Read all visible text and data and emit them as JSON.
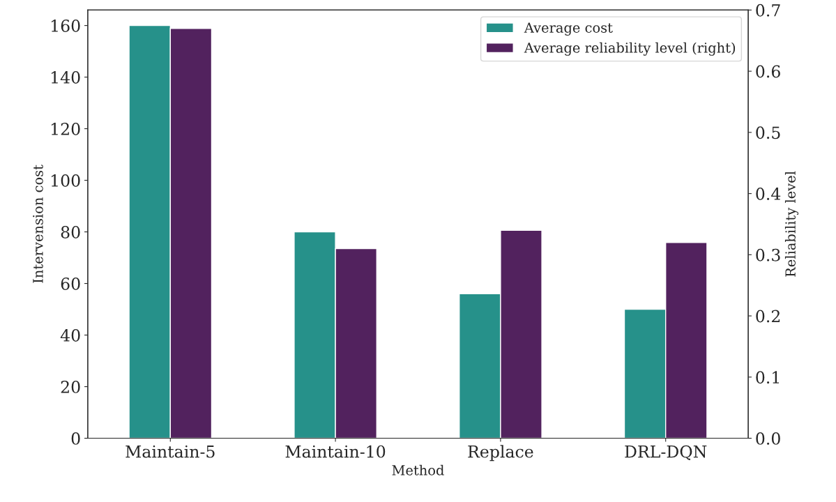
{
  "chart_data": {
    "type": "bar",
    "xlabel": "Method",
    "ylabel": "Intervension cost",
    "y2label": "Reliability level",
    "categories": [
      "Maintain-5",
      "Maintain-10",
      "Replace",
      "DRL-DQN"
    ],
    "series": [
      {
        "name": "Average cost",
        "color": "#26918a",
        "values": [
          160,
          80,
          56,
          50
        ]
      },
      {
        "name": "Average reliability level (right)",
        "color": "#52225e",
        "axis": "y2",
        "values": [
          0.67,
          0.31,
          0.34,
          0.32
        ]
      }
    ],
    "ylim": [
      0,
      166
    ],
    "yticks": [
      0,
      20,
      40,
      60,
      80,
      100,
      120,
      140,
      160
    ],
    "y2lim": [
      0,
      0.7
    ],
    "y2ticks": [
      {
        "value": 0,
        "label": "0.0"
      },
      0.1,
      0.2,
      0.3,
      0.4,
      0.5,
      0.6,
      0.7
    ],
    "legend": "top right",
    "grid": false
  }
}
